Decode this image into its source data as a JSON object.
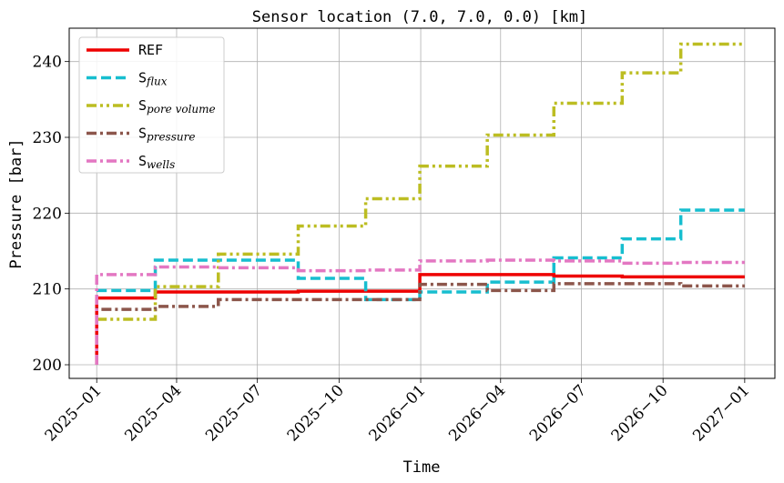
{
  "chart_data": {
    "type": "line",
    "step": "post",
    "title": "Sensor location (7.0, 7.0, 0.0) [km]",
    "xlabel": "Time",
    "ylabel": "Pressure [bar]",
    "x_ticks": [
      "2025−01",
      "2025−04",
      "2025−07",
      "2025−10",
      "2026−01",
      "2026−04",
      "2026−07",
      "2026−10",
      "2027−01"
    ],
    "y_ticks": [
      "200",
      "210",
      "220",
      "230",
      "240"
    ],
    "xlim": [
      "2024-12-01",
      "2027-02-04"
    ],
    "ylim": [
      198.2,
      244.4
    ],
    "grid": true,
    "legend_position": "upper left",
    "series": [
      {
        "legend_main": "REF",
        "legend_sub": "",
        "color": "#ee0000",
        "dash": "solid",
        "points": [
          [
            "2025-01-01",
            200
          ],
          [
            "2025-01-01",
            208.8
          ],
          [
            "2025-03-08",
            209.6
          ],
          [
            "2025-05-18",
            209.6
          ],
          [
            "2025-08-16",
            209.7
          ],
          [
            "2025-10-31",
            209.7
          ],
          [
            "2025-12-31",
            211.9
          ],
          [
            "2026-03-17",
            211.9
          ],
          [
            "2026-05-31",
            211.7
          ],
          [
            "2026-08-16",
            211.6
          ],
          [
            "2026-10-21",
            211.6
          ],
          [
            "2027-01-01",
            211.6
          ]
        ]
      },
      {
        "legend_main": "S",
        "legend_sub": "flux",
        "color": "#17becf",
        "dash": "dashed",
        "points": [
          [
            "2025-01-01",
            209.8
          ],
          [
            "2025-03-08",
            213.8
          ],
          [
            "2025-08-16",
            211.4
          ],
          [
            "2025-10-31",
            208.6
          ],
          [
            "2025-12-31",
            209.6
          ],
          [
            "2026-03-17",
            210.9
          ],
          [
            "2026-05-31",
            214.1
          ],
          [
            "2026-08-16",
            216.6
          ],
          [
            "2026-10-21",
            220.4
          ],
          [
            "2027-01-01",
            220.4
          ]
        ]
      },
      {
        "legend_main": "S",
        "legend_sub": "pore volume",
        "color": "#bcbd22",
        "dash": "dashdotdot",
        "points": [
          [
            "2025-01-01",
            206.0
          ],
          [
            "2025-03-08",
            210.3
          ],
          [
            "2025-05-18",
            214.6
          ],
          [
            "2025-08-16",
            218.3
          ],
          [
            "2025-10-31",
            221.9
          ],
          [
            "2025-12-31",
            226.2
          ],
          [
            "2026-03-17",
            230.3
          ],
          [
            "2026-05-31",
            234.5
          ],
          [
            "2026-08-16",
            238.5
          ],
          [
            "2026-10-21",
            242.3
          ],
          [
            "2027-01-01",
            242.3
          ]
        ]
      },
      {
        "legend_main": "S",
        "legend_sub": "pressure",
        "color": "#8c564b",
        "dash": "dashdot",
        "points": [
          [
            "2025-01-01",
            200
          ],
          [
            "2025-01-01",
            207.3
          ],
          [
            "2025-03-08",
            207.7
          ],
          [
            "2025-05-18",
            208.6
          ],
          [
            "2025-10-31",
            208.6
          ],
          [
            "2025-12-31",
            210.6
          ],
          [
            "2026-03-17",
            209.8
          ],
          [
            "2026-05-31",
            210.7
          ],
          [
            "2026-10-21",
            210.4
          ],
          [
            "2027-01-01",
            210.4
          ]
        ]
      },
      {
        "legend_main": "S",
        "legend_sub": "wells",
        "color": "#e377c2",
        "dash": "dashdot",
        "points": [
          [
            "2025-01-01",
            200
          ],
          [
            "2025-01-01",
            211.9
          ],
          [
            "2025-03-08",
            212.9
          ],
          [
            "2025-05-18",
            212.8
          ],
          [
            "2025-08-16",
            212.4
          ],
          [
            "2025-10-31",
            212.5
          ],
          [
            "2025-12-31",
            213.7
          ],
          [
            "2026-03-17",
            213.8
          ],
          [
            "2026-05-31",
            213.7
          ],
          [
            "2026-08-16",
            213.4
          ],
          [
            "2026-10-21",
            213.5
          ],
          [
            "2027-01-01",
            213.5
          ]
        ]
      }
    ]
  }
}
